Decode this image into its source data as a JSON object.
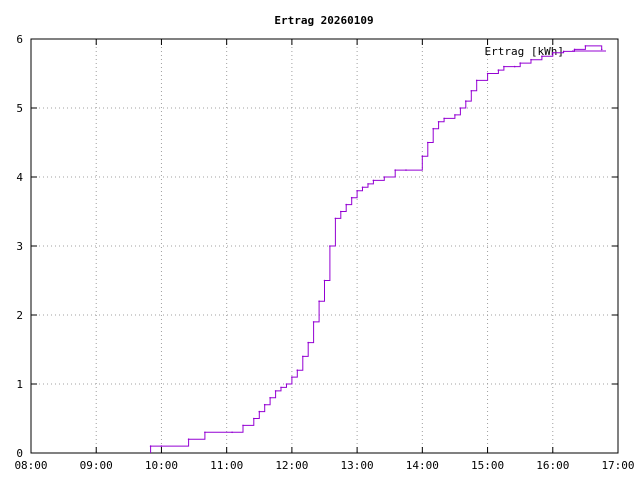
{
  "chart_data": {
    "type": "line",
    "title": "Ertrag 20260109",
    "xlabel": "",
    "ylabel": "",
    "legend": {
      "label": "Ertrag [kWh]",
      "placement": "top-right"
    },
    "grid": true,
    "colors": {
      "series": "#9400d3",
      "grid": "#a0a0a0",
      "axis": "#000000"
    },
    "xlim": [
      "08:00",
      "17:00"
    ],
    "ylim": [
      0,
      6
    ],
    "x_ticks": [
      "08:00",
      "09:00",
      "10:00",
      "11:00",
      "12:00",
      "13:00",
      "14:00",
      "15:00",
      "16:00",
      "17:00"
    ],
    "y_ticks": [
      "0",
      "1",
      "2",
      "3",
      "4",
      "5",
      "6"
    ],
    "series": [
      {
        "name": "Ertrag [kWh]",
        "x": [
          "09:50",
          "10:00",
          "10:25",
          "10:40",
          "11:05",
          "11:15",
          "11:25",
          "11:30",
          "11:35",
          "11:40",
          "11:45",
          "11:50",
          "11:55",
          "12:00",
          "12:05",
          "12:10",
          "12:15",
          "12:20",
          "12:25",
          "12:30",
          "12:35",
          "12:40",
          "12:45",
          "12:50",
          "12:55",
          "13:00",
          "13:05",
          "13:10",
          "13:15",
          "13:25",
          "13:35",
          "13:45",
          "14:00",
          "14:05",
          "14:10",
          "14:15",
          "14:20",
          "14:30",
          "14:35",
          "14:40",
          "14:45",
          "14:50",
          "15:00",
          "15:10",
          "15:15",
          "15:25",
          "15:30",
          "15:40",
          "15:50",
          "16:00",
          "16:10",
          "16:20",
          "16:30",
          "16:45"
        ],
        "y": [
          0.1,
          0.1,
          0.2,
          0.3,
          0.3,
          0.4,
          0.5,
          0.6,
          0.7,
          0.8,
          0.9,
          0.95,
          1.0,
          1.1,
          1.2,
          1.4,
          1.6,
          1.9,
          2.2,
          2.5,
          3.0,
          3.4,
          3.5,
          3.6,
          3.7,
          3.8,
          3.85,
          3.9,
          3.95,
          4.0,
          4.1,
          4.1,
          4.3,
          4.5,
          4.7,
          4.8,
          4.85,
          4.9,
          5.0,
          5.1,
          5.25,
          5.4,
          5.5,
          5.55,
          5.6,
          5.6,
          5.65,
          5.7,
          5.75,
          5.8,
          5.82,
          5.85,
          5.9,
          5.85
        ]
      }
    ]
  }
}
